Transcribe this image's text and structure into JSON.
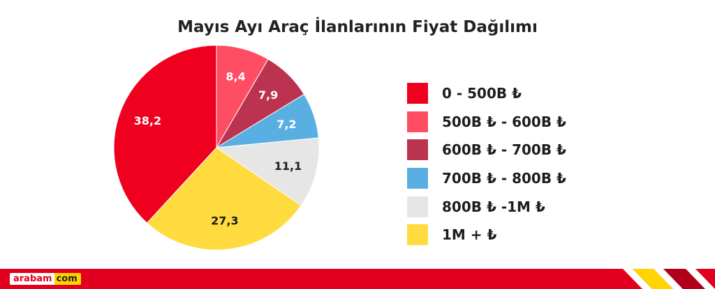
{
  "chart_data": {
    "type": "pie",
    "title": "Mayıs Ayı Araç İlanlarının Fiyat Dağılımı",
    "slices": [
      {
        "label": "8,4",
        "value": 8.4,
        "legend": "500B ₺ - 600B ₺",
        "color": "#ff4d63"
      },
      {
        "label": "7,9",
        "value": 7.9,
        "legend": "600B ₺ - 700B ₺",
        "color": "#bc3350"
      },
      {
        "label": "7,2",
        "value": 7.2,
        "legend": "700B ₺ - 800B ₺",
        "color": "#5aafe2"
      },
      {
        "label": "11,1",
        "value": 11.1,
        "legend": "800B ₺ -1M ₺",
        "color": "#e6e6e6"
      },
      {
        "label": "27,3",
        "value": 27.3,
        "legend": "1M + ₺",
        "color": "#ffdb3f"
      },
      {
        "label": "38,2",
        "value": 38.2,
        "legend": "0 - 500B ₺",
        "color": "#f0001f"
      }
    ],
    "legend": [
      {
        "label": "0 - 500B ₺",
        "color": "#f0001f"
      },
      {
        "label": "500B ₺ - 600B ₺",
        "color": "#ff4d63"
      },
      {
        "label": "600B ₺ - 700B ₺",
        "color": "#bc3350"
      },
      {
        "label": "700B ₺ - 800B ₺",
        "color": "#5aafe2"
      },
      {
        "label": "800B ₺ -1M ₺",
        "color": "#e6e6e6"
      },
      {
        "label": "1M + ₺",
        "color": "#ffdb3f"
      }
    ],
    "legend_position": "right"
  },
  "brand": {
    "logo_left": "arabam",
    "logo_right": "com",
    "colors": {
      "red": "#e1001e",
      "yellow": "#ffd400",
      "dark_red": "#b3001a"
    }
  }
}
